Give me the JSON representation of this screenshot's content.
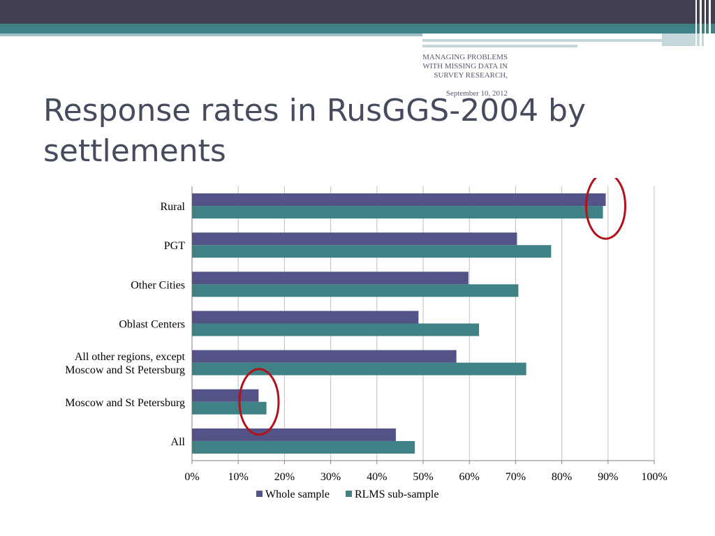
{
  "slide": {
    "subtitle": "Managing problems with missing data in survey research,",
    "subtitle_date": "September 10, 2012",
    "title": "Response rates in RusGGS-2004 by settlements"
  },
  "colors": {
    "dark_band": "#414153",
    "teal_band": "#3f8185",
    "series_whole": "#545387",
    "series_rlms": "#3f8185",
    "circle": "#b0121b"
  },
  "chart_data": {
    "type": "bar",
    "orientation": "horizontal",
    "categories": [
      [
        "Rural"
      ],
      [
        "PGT"
      ],
      [
        "Other Cities"
      ],
      [
        "Oblast Centers"
      ],
      [
        "All other regions, except",
        "Moscow and St Petersburg"
      ],
      [
        "Moscow and St Petersburg"
      ],
      [
        "All"
      ]
    ],
    "series": [
      {
        "name": "Whole sample",
        "color": "#545387",
        "values": [
          89.5,
          70.3,
          59.8,
          49.0,
          57.2,
          14.4,
          44.1
        ]
      },
      {
        "name": "RLMS sub-sample",
        "color": "#3f8185",
        "values": [
          88.9,
          77.7,
          70.6,
          62.1,
          72.3,
          16.1,
          48.2
        ]
      }
    ],
    "xlim": [
      0,
      100
    ],
    "xticks": [
      0,
      10,
      20,
      30,
      40,
      50,
      60,
      70,
      80,
      90,
      100
    ],
    "xtick_labels": [
      "0%",
      "10%",
      "20%",
      "30%",
      "40%",
      "50%",
      "60%",
      "70%",
      "80%",
      "90%",
      "100%"
    ],
    "grid": true,
    "legend_position": "bottom",
    "annotations": [
      {
        "type": "circle",
        "category": "Rural",
        "value": 89.5
      },
      {
        "type": "circle",
        "category": "Moscow and St Petersburg",
        "value": 14.5
      }
    ]
  }
}
